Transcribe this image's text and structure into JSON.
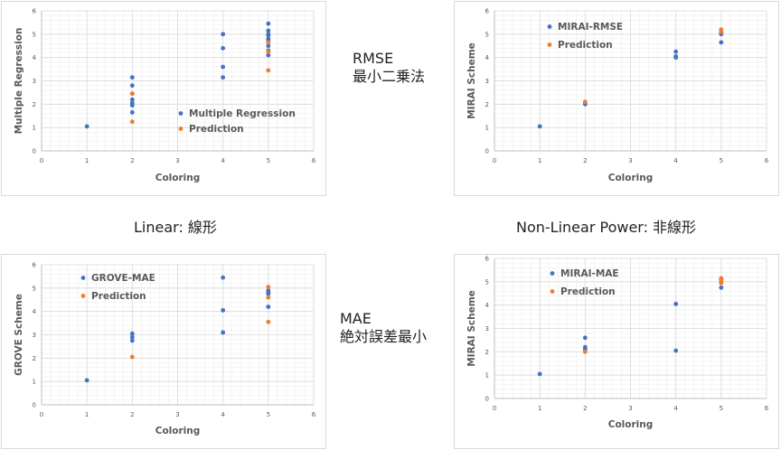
{
  "notes": {
    "rmse_line1": "RMSE",
    "rmse_line2": "最小二乗法",
    "linear_caption": "Linear: 線形",
    "nonlinear_caption": "Non-Linear Power: 非線形",
    "mae_line1": "MAE",
    "mae_line2": "絶対誤差最小"
  },
  "colors": {
    "blue": "#4472C4",
    "orange": "#ED7D31",
    "grid": "#D9D9D9",
    "axis": "#BFBFBF",
    "text": "#595959"
  },
  "chart_data": [
    {
      "type": "scatter",
      "xlabel": "Coloring",
      "ylabel": "Multiple Regression",
      "xlim": [
        0,
        6
      ],
      "ylim": [
        0,
        6
      ],
      "xticks": [
        "0",
        "1",
        "2",
        "3",
        "4",
        "5",
        "6"
      ],
      "yticks": [
        "0",
        "1",
        "2",
        "3",
        "4",
        "5",
        "6"
      ],
      "legend_position": "center-right",
      "series": [
        {
          "name": "Multiple Regression",
          "color": "#4472C4",
          "x": [
            1,
            2,
            2,
            2,
            2,
            2,
            2,
            2,
            4,
            4,
            4,
            4,
            5,
            5,
            5,
            5,
            5,
            5,
            5,
            5,
            5
          ],
          "y": [
            1.05,
            3.15,
            2.8,
            2.45,
            2.2,
            2.05,
            1.95,
            1.65,
            5.0,
            4.4,
            3.6,
            3.15,
            5.45,
            5.15,
            5.0,
            4.8,
            4.7,
            4.5,
            4.3,
            4.1,
            4.95
          ]
        },
        {
          "name": "Prediction",
          "color": "#ED7D31",
          "x": [
            2,
            2,
            5,
            5,
            5
          ],
          "y": [
            2.45,
            1.25,
            4.65,
            4.25,
            3.45
          ]
        }
      ]
    },
    {
      "type": "scatter",
      "xlabel": "Coloring",
      "ylabel": "MIRAI Scheme",
      "xlim": [
        0,
        6
      ],
      "ylim": [
        0,
        6
      ],
      "xticks": [
        "0",
        "1",
        "2",
        "3",
        "4",
        "5",
        "6"
      ],
      "yticks": [
        "0",
        "1",
        "2",
        "3",
        "4",
        "5",
        "6"
      ],
      "legend_position": "top-left",
      "series": [
        {
          "name": "MIRAI-RMSE",
          "color": "#4472C4",
          "x": [
            1,
            2,
            2,
            4,
            4,
            4,
            5,
            5,
            5
          ],
          "y": [
            1.05,
            2.05,
            2.0,
            4.25,
            4.05,
            4.0,
            5.05,
            5.0,
            4.65
          ]
        },
        {
          "name": "Prediction",
          "color": "#ED7D31",
          "x": [
            2,
            5,
            5
          ],
          "y": [
            2.1,
            5.2,
            5.1
          ]
        }
      ]
    },
    {
      "type": "scatter",
      "xlabel": "Coloring",
      "ylabel": "GROVE Scheme",
      "xlim": [
        0,
        6
      ],
      "ylim": [
        0,
        6
      ],
      "xticks": [
        "0",
        "1",
        "2",
        "3",
        "4",
        "5",
        "6"
      ],
      "yticks": [
        "0",
        "1",
        "2",
        "3",
        "4",
        "5",
        "6"
      ],
      "legend_position": "top-left",
      "series": [
        {
          "name": "GROVE-MAE",
          "color": "#4472C4",
          "x": [
            1,
            2,
            2,
            2,
            4,
            4,
            4,
            5,
            5,
            5,
            5
          ],
          "y": [
            1.05,
            3.05,
            2.9,
            2.75,
            5.45,
            4.05,
            3.1,
            4.9,
            4.8,
            4.75,
            4.2
          ]
        },
        {
          "name": "Prediction",
          "color": "#ED7D31",
          "x": [
            2,
            5,
            5,
            5
          ],
          "y": [
            2.05,
            5.05,
            4.6,
            3.55
          ]
        }
      ]
    },
    {
      "type": "scatter",
      "xlabel": "Coloring",
      "ylabel": "MIRAI Scheme",
      "xlim": [
        0,
        6
      ],
      "ylim": [
        0,
        6
      ],
      "xticks": [
        "0",
        "1",
        "2",
        "3",
        "4",
        "5",
        "6"
      ],
      "yticks": [
        "0",
        "1",
        "2",
        "3",
        "4",
        "5",
        "6"
      ],
      "legend_position": "top-left",
      "series": [
        {
          "name": "MIRAI-MAE",
          "color": "#4472C4",
          "x": [
            1,
            2,
            2,
            2,
            4,
            4,
            5,
            5,
            5
          ],
          "y": [
            1.05,
            2.6,
            2.2,
            2.1,
            4.05,
            2.05,
            5.1,
            4.95,
            4.75
          ]
        },
        {
          "name": "Prediction",
          "color": "#ED7D31",
          "x": [
            2,
            5,
            5,
            5
          ],
          "y": [
            2.0,
            5.15,
            5.05,
            4.95
          ]
        }
      ]
    }
  ]
}
